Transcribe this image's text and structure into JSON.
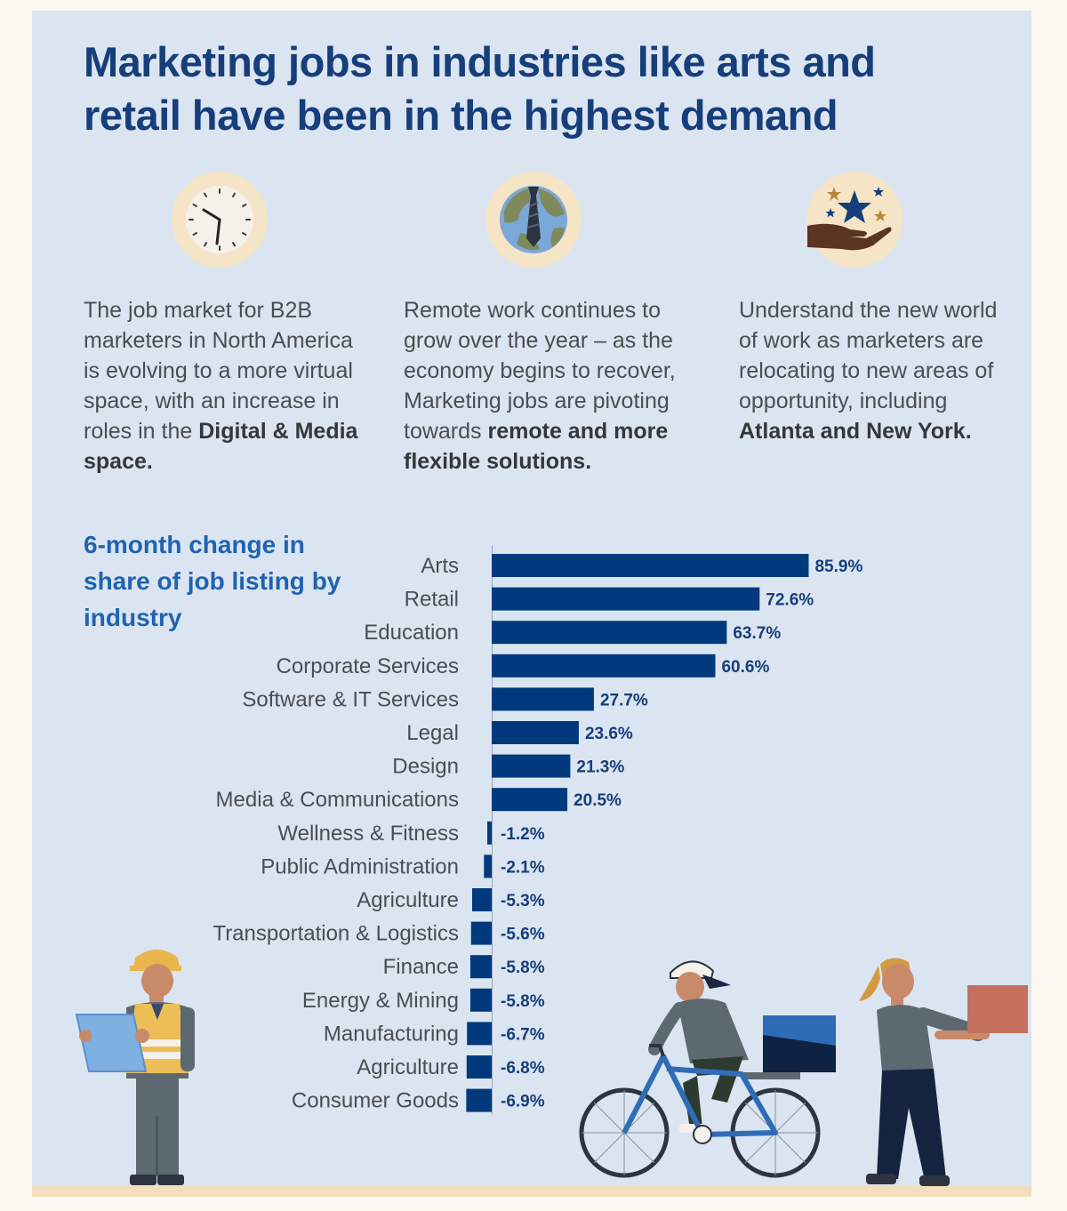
{
  "title": "Marketing jobs in industries like arts and retail have been in the highest demand",
  "features": [
    {
      "icon": "clock-icon",
      "text_parts": [
        "The job market for B2B marketers in North America is evolving to a more virtual space, with an increase in roles in the "
      ],
      "bold": "Digital & Media space."
    },
    {
      "icon": "globe-necktie-icon",
      "text_parts": [
        "Remote work continues to grow over the year – as the economy begins to recover, Marketing jobs are pivoting towards "
      ],
      "bold": "remote and more flexible solutions."
    },
    {
      "icon": "stars-in-hand-icon",
      "text_parts": [
        "Understand the new world of work as marketers are relocating to new areas of opportunity, including "
      ],
      "bold": "Atlanta and New York."
    }
  ],
  "chart_data": {
    "type": "bar",
    "orientation": "horizontal",
    "title": "6-month change in share of job listing by industry",
    "categories": [
      "Arts",
      "Retail",
      "Education",
      "Corporate Services",
      "Software & IT Services",
      "Legal",
      "Design",
      "Media & Communications",
      "Wellness & Fitness",
      "Public Administration",
      "Agriculture",
      "Transportation & Logistics",
      "Finance",
      "Energy & Mining",
      "Manufacturing",
      "Agriculture",
      "Consumer Goods"
    ],
    "values": [
      85.9,
      72.6,
      63.7,
      60.6,
      27.7,
      23.6,
      21.3,
      20.5,
      -1.2,
      -2.1,
      -5.3,
      -5.6,
      -5.8,
      -5.8,
      -6.7,
      -6.8,
      -6.9
    ],
    "value_labels": [
      "85.9%",
      "72.6%",
      "63.7%",
      "60.6%",
      "27.7%",
      "23.6%",
      "21.3%",
      "20.5%",
      "-1.2%",
      "-2.1%",
      "-5.3%",
      "-5.6%",
      "-5.8%",
      "-5.8%",
      "-6.7%",
      "-6.8%",
      "-6.9%"
    ],
    "unit": "%",
    "bar_color": "#003a7d",
    "grid": false,
    "legend": "none"
  },
  "colors": {
    "title": "#153e7a",
    "chart_heading": "#1f63b1",
    "background": "#dbe5f1",
    "page": "#fcf8f0",
    "bar": "#003a7d"
  },
  "illustrations": [
    "construction-worker-illustration",
    "cyclist-courier-illustration",
    "delivery-person-illustration"
  ]
}
